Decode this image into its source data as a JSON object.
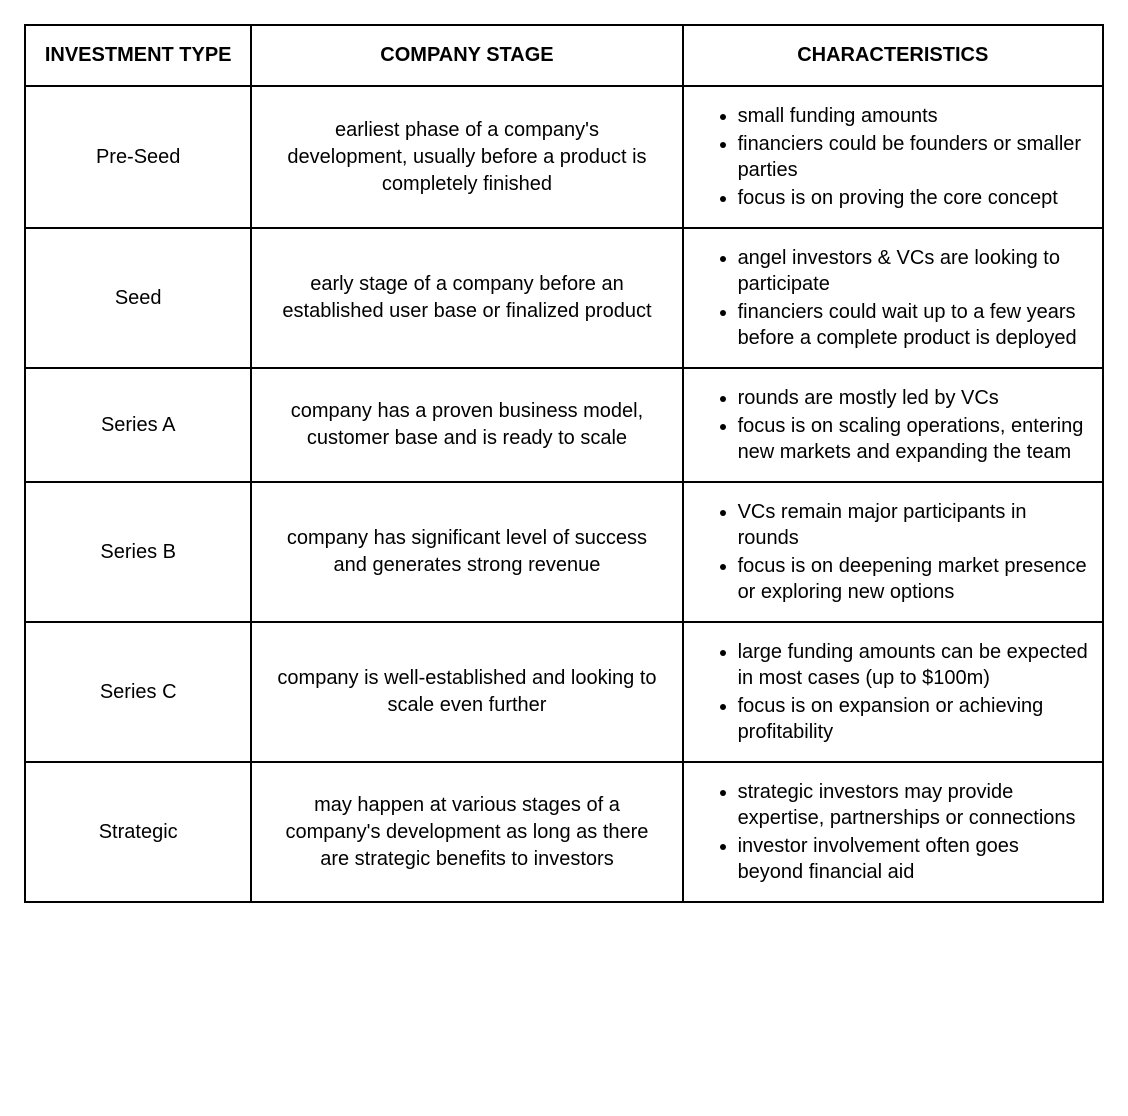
{
  "table": {
    "type": "table",
    "border_color": "#000000",
    "background_color": "#ffffff",
    "text_color": "#000000",
    "header_fontsize": 20,
    "body_fontsize": 20,
    "columns": [
      {
        "label": "INVESTMENT TYPE",
        "width_pct": 21,
        "align": "center"
      },
      {
        "label": "COMPANY STAGE",
        "width_pct": 40,
        "align": "center"
      },
      {
        "label": "CHARACTERISTICS",
        "width_pct": 39,
        "align": "left"
      }
    ],
    "rows": [
      {
        "type": "Pre-Seed",
        "stage": "earliest phase of a company's development, usually before a product is completely finished",
        "characteristics": [
          "small funding amounts",
          "financiers could be founders or smaller parties",
          "focus is on proving the core concept"
        ]
      },
      {
        "type": "Seed",
        "stage": "early stage of a company before an established user base or finalized product",
        "characteristics": [
          "angel investors & VCs are looking to participate",
          "financiers could wait up to a few years before a complete product is deployed"
        ]
      },
      {
        "type": "Series A",
        "stage": "company has a proven business model, customer base and is ready to scale",
        "characteristics": [
          "rounds are mostly led by VCs",
          "focus is on scaling operations, entering new markets and expanding the team"
        ]
      },
      {
        "type": "Series B",
        "stage": "company has significant level of success and generates strong revenue",
        "characteristics": [
          "VCs remain major participants in rounds",
          "focus is on deepening market presence or exploring new options"
        ]
      },
      {
        "type": "Series C",
        "stage": "company is well-established and looking to scale even further",
        "characteristics": [
          "large funding amounts can be expected in most cases (up to $100m)",
          "focus is on expansion or achieving profitability"
        ]
      },
      {
        "type": "Strategic",
        "stage": "may happen at various stages of a company's development as long as there are strategic benefits to investors",
        "characteristics": [
          "strategic investors may provide expertise, partnerships or connections",
          "investor involvement often goes beyond financial aid"
        ]
      }
    ]
  }
}
